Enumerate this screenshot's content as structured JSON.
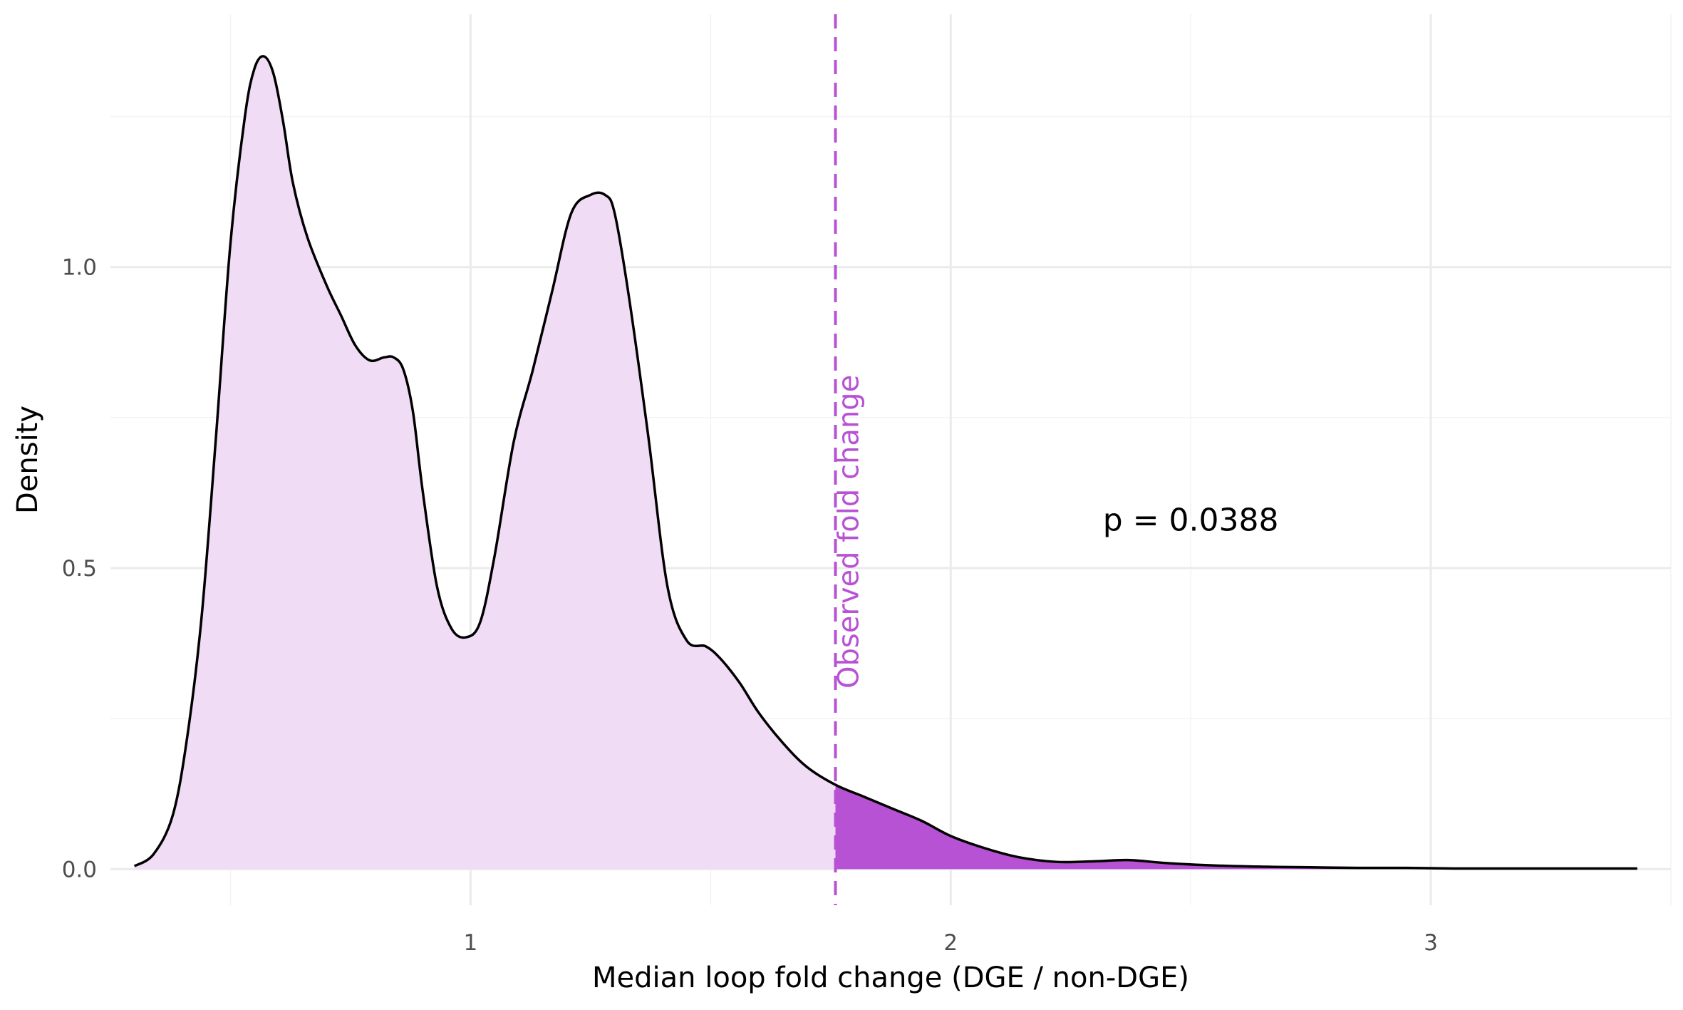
{
  "chart_data": {
    "type": "area",
    "xlabel": "Median loop fold change (DGE / non-DGE)",
    "ylabel": "Density",
    "xlim": [
      0.25,
      3.5
    ],
    "ylim": [
      -0.06,
      1.42
    ],
    "x_ticks": [
      1,
      2,
      3
    ],
    "x_tick_labels": [
      "1",
      "2",
      "3"
    ],
    "y_ticks": [
      0,
      0.5,
      1
    ],
    "y_tick_labels": [
      "0.0",
      "0.5",
      "1.0"
    ],
    "grid": true,
    "density": {
      "x": [
        0.3,
        0.34,
        0.38,
        0.41,
        0.44,
        0.47,
        0.5,
        0.53,
        0.55,
        0.57,
        0.59,
        0.61,
        0.63,
        0.66,
        0.7,
        0.73,
        0.76,
        0.79,
        0.82,
        0.84,
        0.86,
        0.88,
        0.9,
        0.93,
        0.96,
        0.99,
        1.02,
        1.05,
        1.09,
        1.13,
        1.17,
        1.21,
        1.25,
        1.28,
        1.3,
        1.33,
        1.37,
        1.41,
        1.45,
        1.49,
        1.52,
        1.56,
        1.6,
        1.65,
        1.7,
        1.76,
        1.82,
        1.88,
        1.94,
        2.0,
        2.07,
        2.14,
        2.22,
        2.3,
        2.37,
        2.45,
        2.55,
        2.65,
        2.75,
        2.85,
        2.95,
        3.05,
        3.15,
        3.25,
        3.35,
        3.43
      ],
      "y": [
        0.005,
        0.025,
        0.09,
        0.22,
        0.42,
        0.72,
        1.04,
        1.25,
        1.33,
        1.35,
        1.32,
        1.24,
        1.14,
        1.05,
        0.97,
        0.92,
        0.87,
        0.845,
        0.85,
        0.85,
        0.83,
        0.76,
        0.63,
        0.47,
        0.4,
        0.385,
        0.41,
        0.52,
        0.71,
        0.83,
        0.96,
        1.09,
        1.12,
        1.12,
        1.09,
        0.95,
        0.72,
        0.47,
        0.38,
        0.37,
        0.35,
        0.31,
        0.26,
        0.21,
        0.17,
        0.14,
        0.12,
        0.1,
        0.08,
        0.055,
        0.035,
        0.02,
        0.012,
        0.013,
        0.015,
        0.01,
        0.006,
        0.004,
        0.003,
        0.002,
        0.002,
        0.001,
        0.001,
        0.001,
        0.001,
        0.001
      ]
    },
    "observed_fold_change": 1.76,
    "vline_label": "Observed fold change",
    "p_label": "p = 0.0388",
    "p_label_position": [
      2.5,
      0.58
    ],
    "colors": {
      "fill_light": "#f0dcf5",
      "fill_dark": "#b852d4",
      "vline": "#b852d4",
      "curve": "#000000",
      "grid_major": "#ebebeb",
      "grid_minor": "#f3f3f3"
    }
  }
}
